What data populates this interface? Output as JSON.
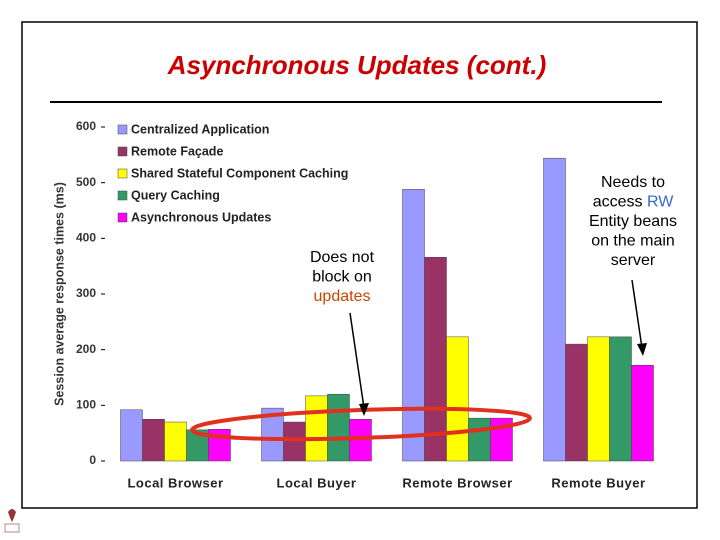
{
  "chart_data": {
    "type": "bar",
    "title": "Asynchronous Updates (cont.)",
    "y_label": "Session average response times (ms)",
    "categories": [
      "Local Browser",
      "Local Buyer",
      "Remote Browser",
      "Remote Buyer"
    ],
    "series": [
      {
        "name": "Centralized Application",
        "color": "#9999ff",
        "values": [
          92,
          95,
          488,
          544
        ]
      },
      {
        "name": "Remote Façade",
        "color": "#993366",
        "values": [
          75,
          70,
          366,
          210
        ]
      },
      {
        "name": "Shared Stateful Component Caching",
        "color": "#ffff00",
        "values": [
          70,
          117,
          223,
          223
        ]
      },
      {
        "name": "Query Caching",
        "color": "#339966",
        "values": [
          56,
          120,
          77,
          223
        ]
      },
      {
        "name": "Asynchronous Updates",
        "color": "#ff00ff",
        "values": [
          57,
          75,
          77,
          172
        ]
      }
    ],
    "ylim": [
      0,
      600
    ],
    "yticks": [
      0,
      100,
      200,
      300,
      400,
      500,
      600
    ],
    "grid": false,
    "legend": "upper left",
    "annotations": [
      {
        "lines": [
          [
            {
              "text": "Does not",
              "color": "#000000"
            }
          ],
          [
            {
              "text": "block on",
              "color": "#000000"
            }
          ],
          [
            {
              "text": "updates",
              "color": "#cc4400"
            }
          ]
        ]
      },
      {
        "lines": [
          [
            {
              "text": "Needs to",
              "color": "#000000"
            }
          ],
          [
            {
              "text": "access ",
              "color": "#000000"
            },
            {
              "text": "RW",
              "color": "#3366cc"
            }
          ],
          [
            {
              "text": "Entity beans",
              "color": "#000000"
            }
          ],
          [
            {
              "text": "on the main",
              "color": "#000000"
            }
          ],
          [
            {
              "text": "server",
              "color": "#000000"
            }
          ]
        ]
      }
    ]
  }
}
